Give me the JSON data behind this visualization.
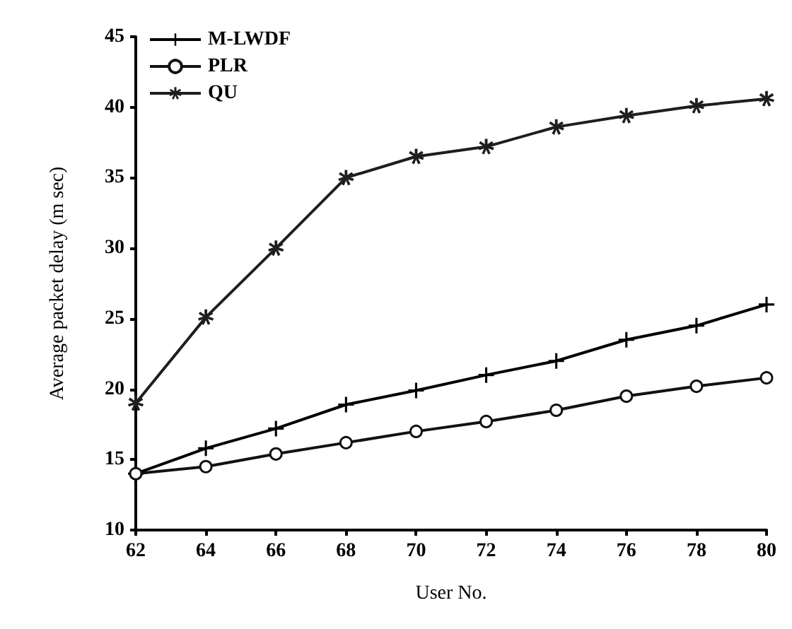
{
  "chart_data": {
    "type": "line",
    "xlabel": "User No.",
    "ylabel": "Average packet delay (m sec)",
    "x": [
      62,
      64,
      66,
      68,
      70,
      72,
      74,
      76,
      78,
      80
    ],
    "xlim": [
      62,
      80
    ],
    "xticks": [
      62,
      64,
      66,
      68,
      70,
      72,
      74,
      76,
      78,
      80
    ],
    "ylim": [
      10,
      45
    ],
    "yticks": [
      10,
      15,
      20,
      25,
      30,
      35,
      40,
      45
    ],
    "grid": false,
    "legend": "top left",
    "line_style": "solid",
    "series": [
      {
        "name": "M-LWDF",
        "color": "#000000",
        "marker": "cross",
        "values": [
          14,
          15.8,
          17.2,
          18.9,
          19.9,
          21,
          22,
          23.5,
          24.5,
          26
        ]
      },
      {
        "name": "PLR",
        "color": "#111111",
        "marker": "circle",
        "values": [
          14,
          14.5,
          15.4,
          16.2,
          17,
          17.7,
          18.5,
          19.5,
          20.2,
          20.8
        ]
      },
      {
        "name": "QU",
        "color": "#1e1e1e",
        "marker": "star",
        "values": [
          19,
          25.1,
          30,
          35,
          36.5,
          37.2,
          38.6,
          39.4,
          40.1,
          40.6
        ]
      }
    ]
  }
}
